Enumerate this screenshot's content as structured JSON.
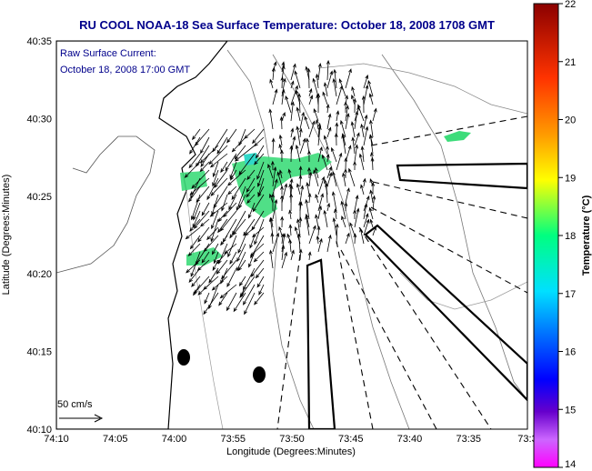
{
  "title": "RU COOL  NOAA-18  Sea Surface Temperature:  October 18, 2008 1708 GMT",
  "legend": {
    "line1": "Raw Surface Current:",
    "line2": "October 18, 2008 17:00 GMT",
    "scale_label": "50 cm/s"
  },
  "axes": {
    "xlabel": "Longitude (Degrees:Minutes)",
    "ylabel": "Latitude (Degrees:Minutes)",
    "x_ticks": [
      "74:10",
      "74:05",
      "74:00",
      "73:55",
      "73:50",
      "73:45",
      "73:40",
      "73:35",
      "73:3"
    ],
    "y_ticks": [
      "40:35",
      "40:30",
      "40:25",
      "40:20",
      "40:15",
      "40:10"
    ]
  },
  "colorbar": {
    "label": "Temperature (°C)",
    "ticks": [
      "22",
      "21",
      "20",
      "19",
      "18",
      "17",
      "16",
      "15",
      "14"
    ]
  },
  "colors": {
    "title": "#00008b",
    "sst_patch": "#3ddc7a",
    "sst_patch_cool": "#30d8c8"
  }
}
